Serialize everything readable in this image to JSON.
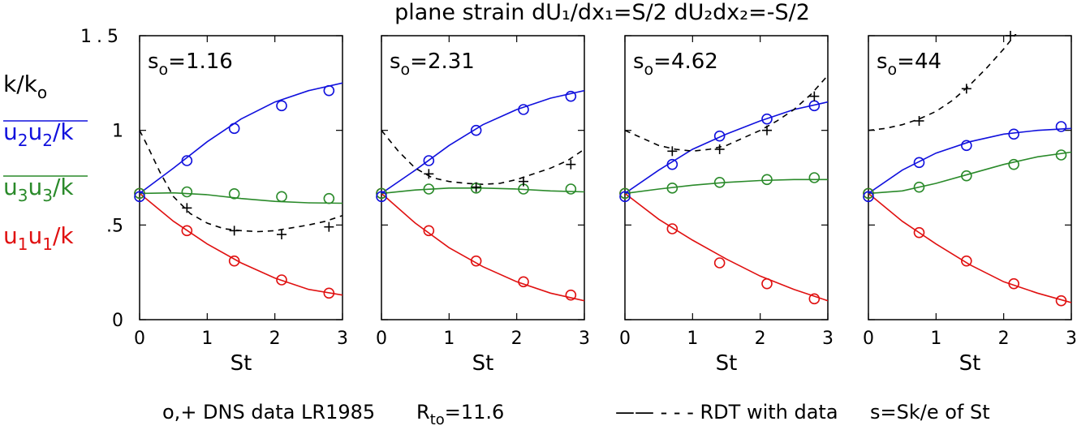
{
  "figure": {
    "title": "plane strain  dU₁/dx₁=S/2  dU₂dx₂=-S/2",
    "legend_markers": "o,+  DNS data LR1985",
    "legend_reynolds": "R",
    "legend_reynolds_sub": "to",
    "legend_reynolds_value": "=11.6",
    "legend_lines": "—— - - - RDT with data",
    "legend_s": "s=Sk/e of St"
  },
  "row_labels": {
    "k": {
      "main": "k/k",
      "sub": "o",
      "color": "#000000"
    },
    "u2u2": {
      "a": "u",
      "b": "2",
      "c": "u",
      "d": "2",
      "e": "/k",
      "color": "#1010dd"
    },
    "u3u3": {
      "a": "u",
      "b": "3",
      "c": "u",
      "d": "3",
      "e": "/k",
      "color": "#2a8a2a"
    },
    "u1u1": {
      "a": "u",
      "b": "1",
      "c": "u",
      "d": "1",
      "e": "/k",
      "color": "#e01010"
    }
  },
  "colors": {
    "u2u2": "#1010dd",
    "u3u3": "#2a8a2a",
    "u1u1": "#e01010",
    "k": "#000000"
  },
  "chart_data": [
    {
      "type": "line",
      "annotation_main": "s",
      "annotation_sub": "o",
      "annotation_value": "=1.16",
      "xlabel": "St",
      "xlim": [
        0,
        3
      ],
      "ylim": [
        0,
        1.5
      ],
      "xticks": [
        "0",
        "1",
        "2",
        "3"
      ],
      "yticks": [
        "0",
        ".5",
        "1",
        "1.5"
      ],
      "curves": {
        "u2u2": {
          "x": [
            0,
            0.5,
            1,
            1.5,
            2,
            2.5,
            3
          ],
          "y": [
            0.667,
            0.8,
            0.94,
            1.06,
            1.15,
            1.21,
            1.25
          ]
        },
        "u3u3": {
          "x": [
            0,
            0.5,
            1,
            1.5,
            2,
            2.5,
            3
          ],
          "y": [
            0.667,
            0.67,
            0.66,
            0.64,
            0.625,
            0.617,
            0.615
          ]
        },
        "u1u1": {
          "x": [
            0,
            0.5,
            1,
            1.5,
            2,
            2.5,
            3
          ],
          "y": [
            0.667,
            0.52,
            0.4,
            0.3,
            0.22,
            0.16,
            0.13
          ]
        },
        "k": {
          "x": [
            0,
            0.1,
            0.3,
            0.5,
            0.75,
            1,
            1.25,
            1.5,
            1.75,
            2,
            2.25,
            2.5,
            2.75,
            3
          ],
          "y": [
            1.0,
            0.93,
            0.78,
            0.65,
            0.56,
            0.51,
            0.48,
            0.47,
            0.465,
            0.47,
            0.485,
            0.5,
            0.52,
            0.55
          ]
        }
      },
      "points": {
        "u2u2": {
          "x": [
            0,
            0.7,
            1.4,
            2.1,
            2.8
          ],
          "y": [
            0.65,
            0.84,
            1.01,
            1.13,
            1.21
          ]
        },
        "u3u3": {
          "x": [
            0,
            0.7,
            1.4,
            2.1,
            2.8
          ],
          "y": [
            0.667,
            0.675,
            0.665,
            0.65,
            0.64
          ]
        },
        "u1u1": {
          "x": [
            0,
            0.7,
            1.4,
            2.1,
            2.8
          ],
          "y": [
            0.667,
            0.47,
            0.31,
            0.21,
            0.14
          ]
        },
        "k": {
          "x": [
            0,
            0.7,
            1.4,
            2.1,
            2.8
          ],
          "y": [
            1.0,
            0.59,
            0.47,
            0.45,
            0.49
          ]
        }
      }
    },
    {
      "type": "line",
      "annotation_main": "s",
      "annotation_sub": "o",
      "annotation_value": "=2.31",
      "xlabel": "St",
      "xlim": [
        0,
        3
      ],
      "ylim": [
        0,
        1.5
      ],
      "xticks": [
        "0",
        "1",
        "2",
        "3"
      ],
      "yticks": [
        "0",
        ".5",
        "1",
        "1.5"
      ],
      "curves": {
        "u2u2": {
          "x": [
            0,
            0.5,
            1,
            1.5,
            2,
            2.5,
            3
          ],
          "y": [
            0.667,
            0.79,
            0.92,
            1.03,
            1.11,
            1.17,
            1.21
          ]
        },
        "u3u3": {
          "x": [
            0,
            0.5,
            1,
            1.5,
            2,
            2.5,
            3
          ],
          "y": [
            0.667,
            0.685,
            0.695,
            0.695,
            0.69,
            0.68,
            0.675
          ]
        },
        "u1u1": {
          "x": [
            0,
            0.5,
            1,
            1.5,
            2,
            2.5,
            3
          ],
          "y": [
            0.667,
            0.51,
            0.38,
            0.28,
            0.2,
            0.14,
            0.1
          ]
        },
        "k": {
          "x": [
            0,
            0.25,
            0.5,
            0.75,
            1,
            1.25,
            1.5,
            1.75,
            2,
            2.25,
            2.5,
            2.75,
            3
          ],
          "y": [
            1.0,
            0.89,
            0.8,
            0.75,
            0.73,
            0.72,
            0.715,
            0.72,
            0.74,
            0.77,
            0.8,
            0.84,
            0.9
          ]
        }
      },
      "points": {
        "u2u2": {
          "x": [
            0,
            0.7,
            1.4,
            2.1,
            2.8
          ],
          "y": [
            0.65,
            0.84,
            1.0,
            1.11,
            1.18
          ]
        },
        "u3u3": {
          "x": [
            0,
            0.7,
            1.4,
            2.1,
            2.8
          ],
          "y": [
            0.667,
            0.69,
            0.695,
            0.69,
            0.69
          ]
        },
        "u1u1": {
          "x": [
            0,
            0.7,
            1.4,
            2.1,
            2.8
          ],
          "y": [
            0.667,
            0.47,
            0.31,
            0.2,
            0.13
          ]
        },
        "k": {
          "x": [
            0,
            0.7,
            1.4,
            2.1,
            2.8
          ],
          "y": [
            1.0,
            0.77,
            0.7,
            0.73,
            0.82
          ]
        }
      }
    },
    {
      "type": "line",
      "annotation_main": "s",
      "annotation_sub": "o",
      "annotation_value": "=4.62",
      "xlabel": "St",
      "xlim": [
        0,
        3
      ],
      "ylim": [
        0,
        1.5
      ],
      "xticks": [
        "0",
        "1",
        "2",
        "3"
      ],
      "yticks": [
        "0",
        ".5",
        "1",
        "1.5"
      ],
      "curves": {
        "u2u2": {
          "x": [
            0,
            0.5,
            1,
            1.5,
            2,
            2.5,
            3
          ],
          "y": [
            0.667,
            0.79,
            0.9,
            0.98,
            1.05,
            1.11,
            1.15
          ]
        },
        "u3u3": {
          "x": [
            0,
            0.5,
            1,
            1.5,
            2,
            2.5,
            3
          ],
          "y": [
            0.667,
            0.69,
            0.71,
            0.725,
            0.735,
            0.74,
            0.74
          ]
        },
        "u1u1": {
          "x": [
            0,
            0.5,
            1,
            1.5,
            2,
            2.5,
            3
          ],
          "y": [
            0.667,
            0.53,
            0.42,
            0.32,
            0.23,
            0.16,
            0.1
          ]
        },
        "k": {
          "x": [
            0,
            0.25,
            0.5,
            0.75,
            1,
            1.25,
            1.5,
            1.75,
            2,
            2.25,
            2.5,
            2.75,
            3
          ],
          "y": [
            1.0,
            0.96,
            0.92,
            0.9,
            0.89,
            0.9,
            0.92,
            0.96,
            1.0,
            1.05,
            1.11,
            1.19,
            1.29
          ]
        }
      },
      "points": {
        "u2u2": {
          "x": [
            0,
            0.7,
            1.4,
            2.1,
            2.8
          ],
          "y": [
            0.65,
            0.82,
            0.97,
            1.06,
            1.13
          ]
        },
        "u3u3": {
          "x": [
            0,
            0.7,
            1.4,
            2.1,
            2.8
          ],
          "y": [
            0.667,
            0.695,
            0.725,
            0.74,
            0.75
          ]
        },
        "u1u1": {
          "x": [
            0,
            0.7,
            1.4,
            2.1,
            2.8
          ],
          "y": [
            0.667,
            0.48,
            0.3,
            0.19,
            0.11
          ]
        },
        "k": {
          "x": [
            0,
            0.7,
            1.4,
            2.1,
            2.8
          ],
          "y": [
            1.0,
            0.89,
            0.9,
            1.0,
            1.18
          ]
        }
      }
    },
    {
      "type": "line",
      "annotation_main": "s",
      "annotation_sub": "o",
      "annotation_value": "=44",
      "xlabel": "St",
      "xlim": [
        0,
        3
      ],
      "ylim": [
        0,
        1.5
      ],
      "xticks": [
        "0",
        "1",
        "2",
        "3"
      ],
      "yticks": [
        "0",
        ".5",
        "1",
        "1.5"
      ],
      "curves": {
        "u2u2": {
          "x": [
            0,
            0.5,
            1,
            1.5,
            2,
            2.5,
            3
          ],
          "y": [
            0.667,
            0.79,
            0.88,
            0.94,
            0.98,
            1.0,
            1.01
          ]
        },
        "u3u3": {
          "x": [
            0,
            0.5,
            1,
            1.5,
            2,
            2.5,
            3
          ],
          "y": [
            0.667,
            0.68,
            0.72,
            0.77,
            0.82,
            0.86,
            0.885
          ]
        },
        "u1u1": {
          "x": [
            0,
            0.5,
            1,
            1.5,
            2,
            2.5,
            3
          ],
          "y": [
            0.667,
            0.52,
            0.4,
            0.29,
            0.2,
            0.14,
            0.09
          ]
        },
        "k": {
          "x": [
            0,
            0.25,
            0.5,
            0.75,
            1,
            1.25,
            1.5,
            1.75,
            2,
            2.25
          ],
          "y": [
            1.0,
            1.01,
            1.03,
            1.06,
            1.1,
            1.16,
            1.24,
            1.33,
            1.43,
            1.54
          ]
        }
      },
      "points": {
        "u2u2": {
          "x": [
            0,
            0.75,
            1.45,
            2.15,
            2.85
          ],
          "y": [
            0.65,
            0.83,
            0.92,
            0.98,
            1.02
          ]
        },
        "u3u3": {
          "x": [
            0,
            0.75,
            1.45,
            2.15,
            2.85
          ],
          "y": [
            0.667,
            0.7,
            0.76,
            0.82,
            0.87
          ]
        },
        "u1u1": {
          "x": [
            0,
            0.75,
            1.45,
            2.15,
            2.85
          ],
          "y": [
            0.667,
            0.46,
            0.31,
            0.19,
            0.1
          ]
        },
        "k": {
          "x": [
            0,
            0.75,
            1.45,
            2.1
          ],
          "y": [
            1.0,
            1.05,
            1.22,
            1.5
          ]
        }
      }
    }
  ]
}
